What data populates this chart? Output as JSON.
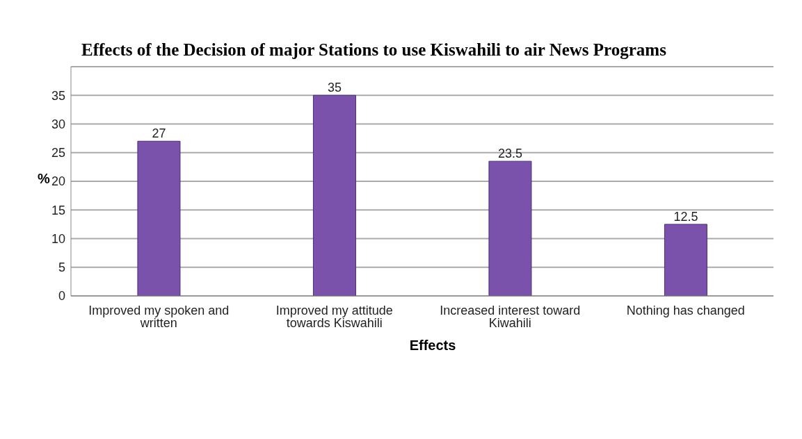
{
  "chart_data": {
    "type": "bar",
    "title": "Effects of the Decision of major Stations to use Kiswahili to air News Programs",
    "xlabel": "Effects",
    "ylabel": "%",
    "categories": [
      "Improved my spoken and written",
      "Improved my attitude towards Kiswahili",
      "Increased interest toward Kiwahili",
      "Nothing has changed"
    ],
    "values": [
      27,
      35,
      23.5,
      12.5
    ],
    "color": "#7b52ab",
    "ylim": [
      0,
      40
    ],
    "yticks": [
      0,
      5,
      10,
      15,
      20,
      25,
      30,
      35
    ],
    "grid": "y",
    "data_labels": true
  }
}
